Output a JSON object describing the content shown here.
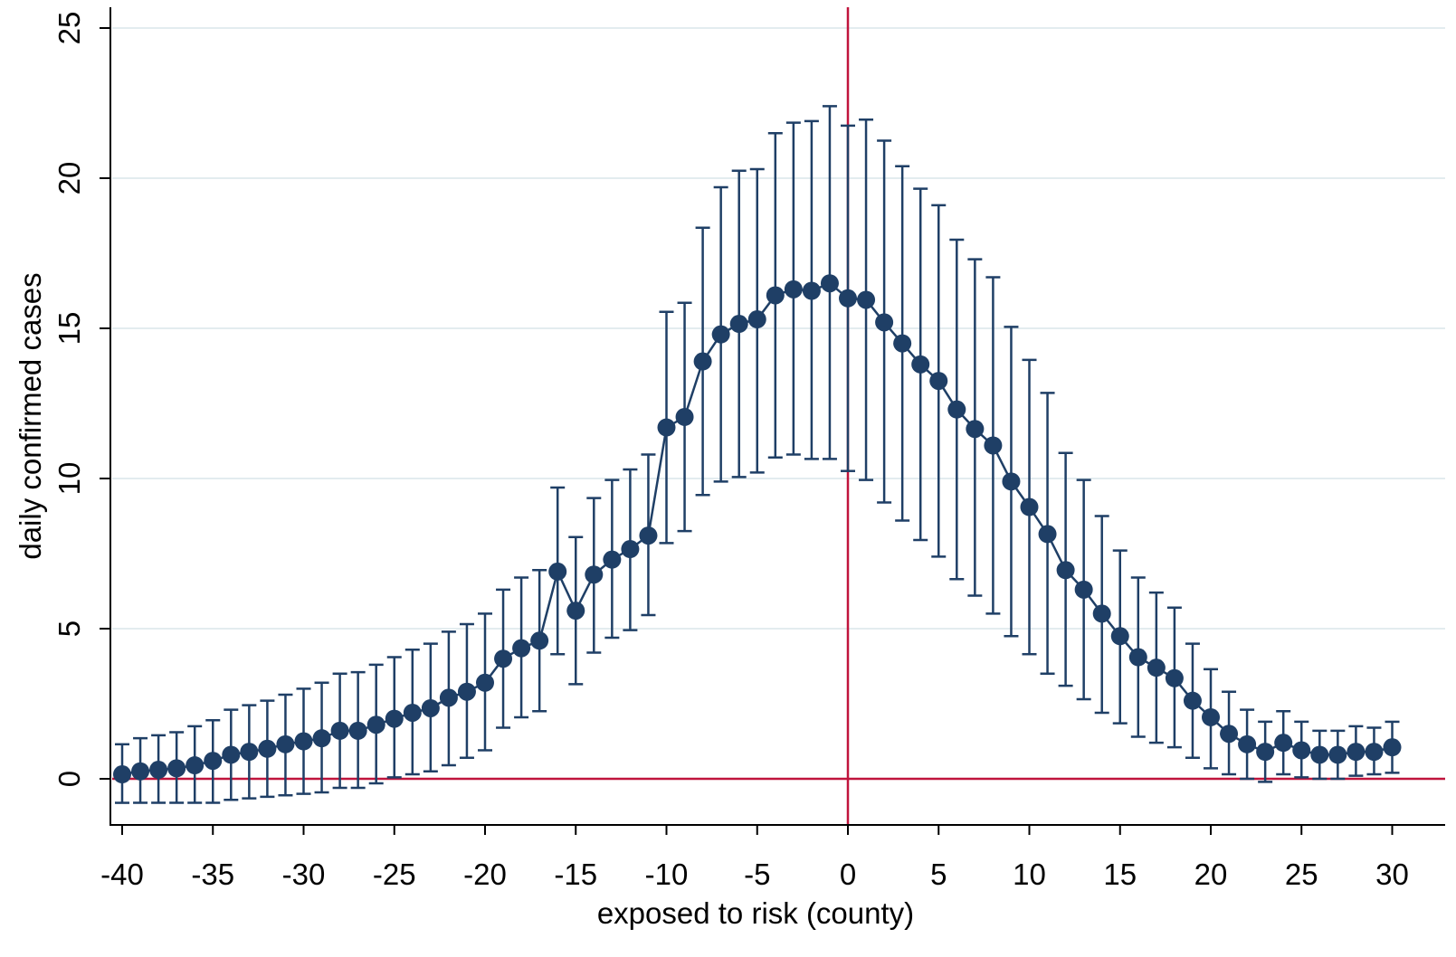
{
  "chart_data": {
    "type": "scatter",
    "xlabel": "exposed to risk (county)",
    "ylabel": "daily confirmed cases",
    "xlim": [
      -40,
      30
    ],
    "ylim": [
      0,
      25
    ],
    "x_ticks": [
      -40,
      -35,
      -30,
      -25,
      -20,
      -15,
      -10,
      -5,
      0,
      5,
      10,
      15,
      20,
      25,
      30
    ],
    "y_ticks": [
      0,
      5,
      10,
      15,
      20,
      25
    ],
    "grid": true,
    "legend": "none",
    "reference_lines": {
      "x": 0,
      "y": 0
    },
    "colors": {
      "series": "#1f3f66",
      "reference": "#c0143c",
      "grid": "#e3ecef",
      "axis": "#000000"
    },
    "series": [
      {
        "x": [
          -40,
          -39,
          -38,
          -37,
          -36,
          -35,
          -34,
          -33,
          -32,
          -31,
          -30,
          -29,
          -28,
          -27,
          -26,
          -25,
          -24,
          -23,
          -22,
          -21,
          -20,
          -19,
          -18,
          -17,
          -16,
          -15,
          -14,
          -13,
          -12,
          -11,
          -10,
          -9,
          -8,
          -7,
          -6,
          -5,
          -4,
          -3,
          -2,
          -1,
          0,
          1,
          2,
          3,
          4,
          5,
          6,
          7,
          8,
          9,
          10,
          11,
          12,
          13,
          14,
          15,
          16,
          17,
          18,
          19,
          20,
          21,
          22,
          23,
          24,
          25,
          26,
          27,
          28,
          29,
          30
        ],
        "y": [
          0.15,
          0.25,
          0.3,
          0.35,
          0.45,
          0.6,
          0.8,
          0.9,
          1.0,
          1.15,
          1.25,
          1.35,
          1.6,
          1.6,
          1.8,
          2.0,
          2.2,
          2.35,
          2.7,
          2.9,
          3.2,
          4.0,
          4.35,
          4.6,
          6.9,
          5.6,
          6.8,
          7.3,
          7.65,
          8.1,
          11.7,
          12.05,
          13.9,
          14.8,
          15.15,
          15.3,
          16.1,
          16.3,
          16.25,
          16.5,
          16.0,
          15.95,
          15.2,
          14.5,
          13.8,
          13.25,
          12.3,
          11.65,
          11.1,
          9.9,
          9.05,
          8.15,
          6.95,
          6.3,
          5.5,
          4.75,
          4.05,
          3.7,
          3.35,
          2.6,
          2.05,
          1.5,
          1.15,
          0.9,
          1.2,
          0.95,
          0.8,
          0.8,
          0.9,
          0.9,
          1.05
        ],
        "y_low": [
          -0.8,
          -0.8,
          -0.8,
          -0.8,
          -0.8,
          -0.8,
          -0.7,
          -0.65,
          -0.6,
          -0.55,
          -0.5,
          -0.45,
          -0.3,
          -0.3,
          -0.15,
          0.05,
          0.15,
          0.25,
          0.45,
          0.7,
          0.95,
          1.7,
          2.05,
          2.25,
          4.15,
          3.15,
          4.2,
          4.7,
          4.95,
          5.45,
          7.85,
          8.25,
          9.45,
          9.9,
          10.05,
          10.2,
          10.7,
          10.8,
          10.65,
          10.65,
          10.25,
          9.95,
          9.2,
          8.6,
          7.95,
          7.4,
          6.65,
          6.1,
          5.5,
          4.75,
          4.15,
          3.5,
          3.1,
          2.65,
          2.2,
          1.85,
          1.4,
          1.2,
          1.05,
          0.7,
          0.35,
          0.15,
          0.0,
          -0.1,
          0.15,
          0.05,
          0.0,
          0.0,
          0.1,
          0.15,
          0.2
        ],
        "y_high": [
          1.15,
          1.35,
          1.45,
          1.55,
          1.75,
          1.95,
          2.3,
          2.45,
          2.6,
          2.8,
          3.0,
          3.2,
          3.5,
          3.55,
          3.8,
          4.05,
          4.3,
          4.5,
          4.9,
          5.15,
          5.5,
          6.3,
          6.7,
          6.95,
          9.7,
          8.05,
          9.35,
          9.95,
          10.3,
          10.8,
          15.55,
          15.85,
          18.35,
          19.7,
          20.25,
          20.3,
          21.5,
          21.85,
          21.9,
          22.4,
          21.75,
          21.95,
          21.25,
          20.4,
          19.65,
          19.1,
          17.95,
          17.3,
          16.7,
          15.05,
          13.95,
          12.85,
          10.85,
          9.95,
          8.75,
          7.6,
          6.7,
          6.2,
          5.7,
          4.5,
          3.65,
          2.9,
          2.3,
          1.9,
          2.25,
          1.9,
          1.6,
          1.6,
          1.75,
          1.7,
          1.9
        ]
      }
    ]
  }
}
